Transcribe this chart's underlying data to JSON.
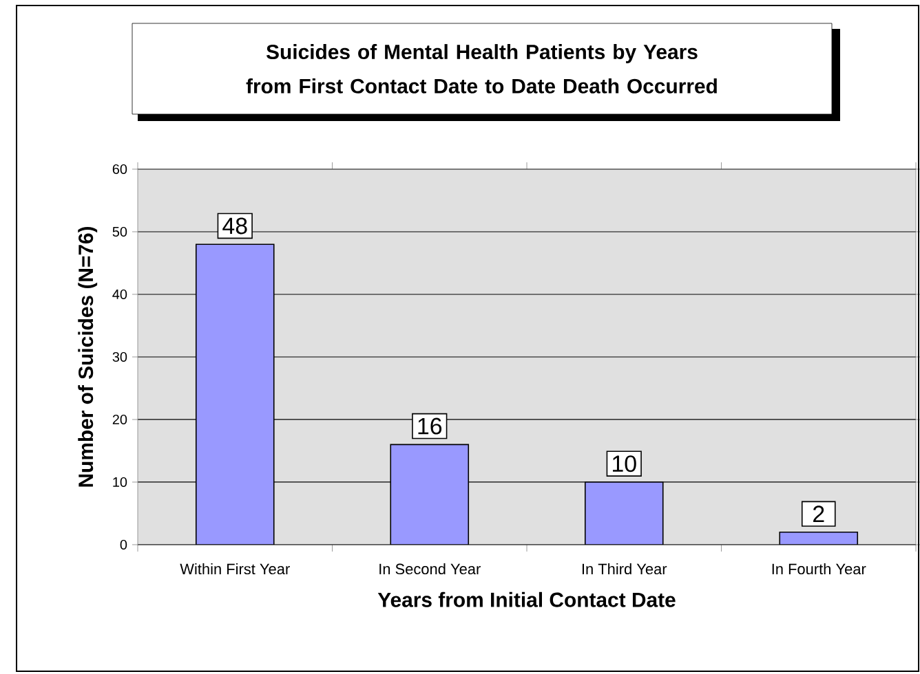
{
  "chart_data": {
    "type": "bar",
    "title": "Suicides of Mental Health Patients by Years from First Contact Date to Date Death Occurred",
    "xlabel": "Years from Initial Contact Date",
    "ylabel": "Number of Suicides (N=76)",
    "categories": [
      "Within First Year",
      "In Second Year",
      "In Third Year",
      "In Fourth Year"
    ],
    "values": [
      48,
      16,
      10,
      2
    ],
    "color": "#9999ff",
    "ylim": [
      0,
      60
    ],
    "yticks": [
      0,
      10,
      20,
      30,
      40,
      50,
      60
    ],
    "grid": "y",
    "data_labels": true
  }
}
